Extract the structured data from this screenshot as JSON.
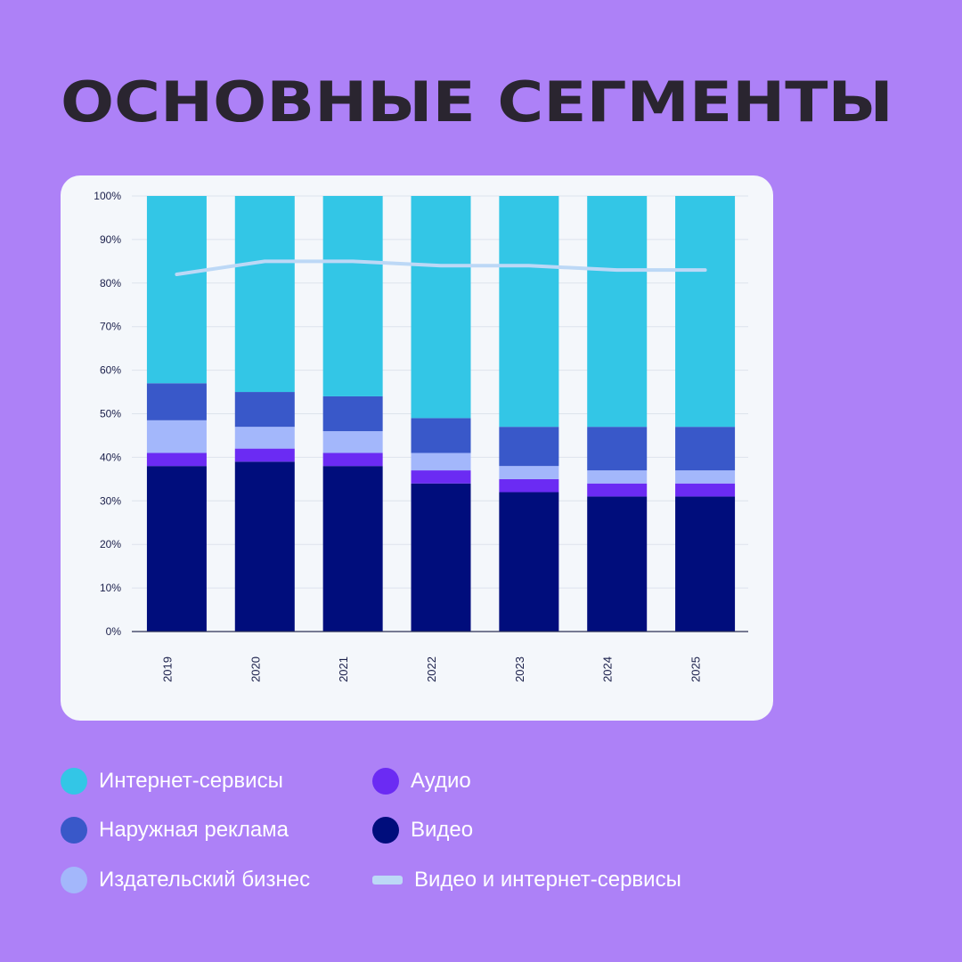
{
  "title": "ОСНОВНЫЕ СЕГМЕНТЫ",
  "chart_data": {
    "type": "bar",
    "stacked": true,
    "categories": [
      "2019",
      "2020",
      "2021",
      "2022",
      "2023",
      "2024",
      "2025"
    ],
    "y_ticks": [
      "0%",
      "10%",
      "20%",
      "30%",
      "40%",
      "50%",
      "60%",
      "70%",
      "80%",
      "90%",
      "100%"
    ],
    "ylim": [
      0,
      100
    ],
    "grid": true,
    "legend_position": "bottom",
    "series": [
      {
        "name": "Видео",
        "values": [
          38,
          39,
          38,
          34,
          32,
          31,
          31
        ],
        "color": "#000d7c"
      },
      {
        "name": "Аудио",
        "values": [
          3,
          3,
          3,
          3,
          3,
          3,
          3
        ],
        "color": "#6b2bf3"
      },
      {
        "name": "Издательский бизнес",
        "values": [
          7.5,
          5,
          5,
          4,
          3,
          3,
          3
        ],
        "color": "#a3b7fb"
      },
      {
        "name": "Наружная реклама",
        "values": [
          8.5,
          8,
          8,
          8,
          9,
          10,
          10
        ],
        "color": "#3958c9"
      },
      {
        "name": "Интернет-сервисы",
        "values": [
          43,
          45,
          46,
          51,
          53,
          53,
          53
        ],
        "color": "#33c6e6"
      }
    ],
    "line_series": {
      "name": "Видео и интернет-сервисы",
      "values": [
        82,
        85,
        85,
        84,
        84,
        83,
        83
      ],
      "color": "#bcd8f6"
    }
  },
  "legend": {
    "items": [
      {
        "label": "Интернет-сервисы",
        "color": "#33c6e6",
        "shape": "dot"
      },
      {
        "label": "Наружная реклама",
        "color": "#3958c9",
        "shape": "dot"
      },
      {
        "label": "Издательский бизнес",
        "color": "#a3b7fb",
        "shape": "dot"
      },
      {
        "label": "Аудио",
        "color": "#6b2bf3",
        "shape": "dot"
      },
      {
        "label": "Видео",
        "color": "#000d7c",
        "shape": "dot"
      },
      {
        "label": "Видео и интернет-сервисы",
        "color": "#bcd8f6",
        "shape": "line"
      }
    ]
  }
}
